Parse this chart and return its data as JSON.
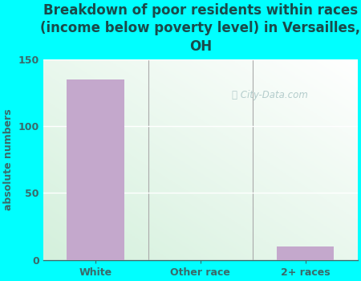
{
  "categories": [
    "White",
    "Other race",
    "2+ races"
  ],
  "values": [
    135,
    0,
    10
  ],
  "bar_color": "#c4a8cc",
  "title": "Breakdown of poor residents within races\n(income below poverty level) in Versailles,\nOH",
  "ylabel": "absolute numbers",
  "ylim": [
    0,
    150
  ],
  "yticks": [
    0,
    50,
    100,
    150
  ],
  "background_color": "#00ffff",
  "title_color": "#1a4a4a",
  "axis_color": "#3a6a6a",
  "watermark": "City-Data.com",
  "title_fontsize": 12,
  "ylabel_fontsize": 9,
  "tick_fontsize": 9
}
